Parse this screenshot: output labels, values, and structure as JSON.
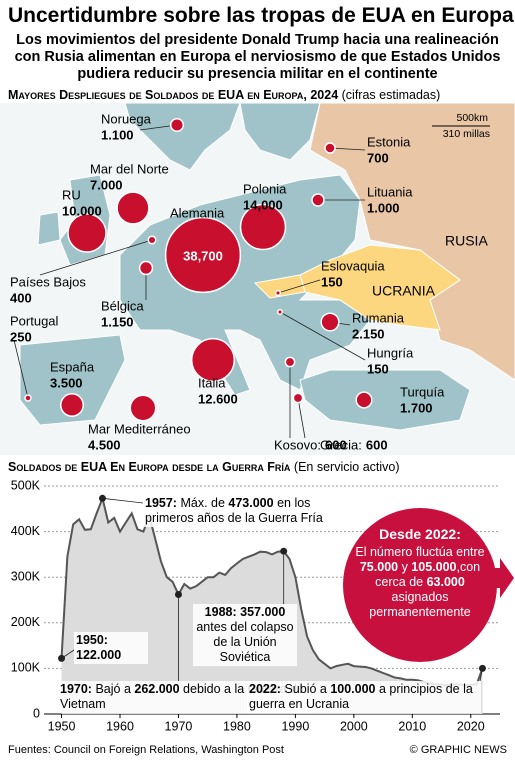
{
  "header": {
    "title": "Uncertidumbre sobre las tropas de EUA en Europa",
    "subtitle": "Los movimientos del presidente Donald Trump hacia una realineación con Rusia alimentan en Europa el nerviosismo de que Estados Unidos pudiera reducir su presencia militar en el continente"
  },
  "map": {
    "title": "Mayores Despliegues de Soldados de EUA en Europa, 2024",
    "subtitle": "(cifras estimadas)",
    "color": "#c8102e",
    "points": [
      {
        "name": "Noruega",
        "value": 1100,
        "value_label": "1.100"
      },
      {
        "name": "Mar del Norte",
        "value": 7000,
        "value_label": "7.000"
      },
      {
        "name": "RU",
        "value": 10000,
        "value_label": "10.000"
      },
      {
        "name": "Alemania",
        "value": 38700,
        "value_label": "38,700"
      },
      {
        "name": "Polonia",
        "value": 14000,
        "value_label": "14,000"
      },
      {
        "name": "Estonia",
        "value": 700,
        "value_label": "700"
      },
      {
        "name": "Lituania",
        "value": 1000,
        "value_label": "1.000"
      },
      {
        "name": "Países Bajos",
        "value": 400,
        "value_label": "400"
      },
      {
        "name": "Bélgica",
        "value": 1150,
        "value_label": "1.150"
      },
      {
        "name": "Eslovaquia",
        "value": 150,
        "value_label": "150"
      },
      {
        "name": "Rumania",
        "value": 2150,
        "value_label": "2.150"
      },
      {
        "name": "Hungría",
        "value": 150,
        "value_label": "150"
      },
      {
        "name": "Portugal",
        "value": 250,
        "value_label": "250"
      },
      {
        "name": "España",
        "value": 3500,
        "value_label": "3.500"
      },
      {
        "name": "Italia",
        "value": 12600,
        "value_label": "12.600"
      },
      {
        "name": "Mar Mediterráneo",
        "value": 4500,
        "value_label": "4.500"
      },
      {
        "name": "Kosovo:",
        "value": 600,
        "value_label": "600"
      },
      {
        "name": "Grecia:",
        "value": 600,
        "value_label": "600"
      },
      {
        "name": "Turquía",
        "value": 1700,
        "value_label": "1.700"
      }
    ],
    "labels": [
      "RUSIA",
      "UCRANIA"
    ],
    "scale": [
      "500km",
      "310 millas"
    ]
  },
  "chart_data": {
    "type": "area",
    "title": "Soldados de EUA En Europa desde la Guerra Fría",
    "subtitle": "(En servicio activo)",
    "x": [
      1950,
      1951,
      1952,
      1953,
      1954,
      1955,
      1956,
      1957,
      1958,
      1959,
      1960,
      1961,
      1962,
      1963,
      1964,
      1965,
      1966,
      1967,
      1968,
      1969,
      1970,
      1971,
      1972,
      1973,
      1974,
      1975,
      1976,
      1977,
      1978,
      1979,
      1980,
      1981,
      1982,
      1983,
      1984,
      1985,
      1986,
      1987,
      1988,
      1989,
      1990,
      1991,
      1992,
      1993,
      1994,
      1995,
      1996,
      1997,
      1998,
      1999,
      2000,
      2001,
      2002,
      2003,
      2004,
      2005,
      2006,
      2007,
      2008,
      2009,
      2010,
      2011,
      2012,
      2013,
      2014,
      2015,
      2016,
      2017,
      2018,
      2019,
      2020,
      2021,
      2022
    ],
    "values": [
      122000,
      346000,
      416000,
      427000,
      404000,
      405000,
      440000,
      473000,
      420000,
      430000,
      400000,
      420000,
      440000,
      405000,
      400000,
      435000,
      385000,
      335000,
      300000,
      290000,
      262000,
      285000,
      275000,
      280000,
      290000,
      300000,
      300000,
      310000,
      305000,
      320000,
      330000,
      340000,
      345000,
      350000,
      356000,
      355000,
      350000,
      356000,
      357000,
      340000,
      300000,
      230000,
      170000,
      140000,
      120000,
      110000,
      100000,
      105000,
      108000,
      110000,
      105000,
      104000,
      103000,
      100000,
      95000,
      90000,
      85000,
      80000,
      78000,
      75000,
      75000,
      74000,
      70000,
      67000,
      65000,
      65000,
      63000,
      65000,
      65000,
      63000,
      64000,
      65000,
      100000
    ],
    "color": "#dcdcdc",
    "line_color": "#555555",
    "xlim": [
      1947,
      2025
    ],
    "xticks": [
      1950,
      1960,
      1970,
      1980,
      1990,
      2000,
      2010,
      2020
    ],
    "ylim": [
      0,
      500000
    ],
    "yticks": [
      0,
      {
        "value": 100000,
        "label": "100K"
      },
      {
        "value": 200000,
        "label": "200K"
      },
      {
        "value": 300000,
        "label": "300K"
      },
      {
        "value": 400000,
        "label": "400K"
      },
      {
        "value": 500000,
        "label": "500K"
      }
    ],
    "grid": true,
    "annotations": [
      {
        "parts": [
          {
            "text": "1957:",
            "bold": true
          },
          {
            "text": " Máx. de ",
            "bold": false
          },
          {
            "text": "473.000",
            "bold": true
          },
          {
            "text": " en los primeros años de la Guerra Fría",
            "bold": false
          }
        ]
      },
      {
        "parts": [
          {
            "text": "1950:",
            "bold": true
          },
          {
            "text": " ",
            "bold": false
          },
          {
            "text": "122.000",
            "bold": true
          }
        ]
      },
      {
        "parts": [
          {
            "text": "1970:",
            "bold": true
          },
          {
            "text": " Bajó a ",
            "bold": false
          },
          {
            "text": "262.000",
            "bold": true
          },
          {
            "text": " debido a la Guerra de Vietnam",
            "bold": false
          }
        ]
      },
      {
        "parts": [
          {
            "text": "1988:",
            "bold": true
          },
          {
            "text": " ",
            "bold": false
          },
          {
            "text": "357.000",
            "bold": true
          },
          {
            "text": " antes del colapso de la Unión Soviética",
            "bold": false
          }
        ]
      },
      {
        "parts": [
          {
            "text": "2022:",
            "bold": true
          },
          {
            "text": " Subió a ",
            "bold": false
          },
          {
            "text": "100.000",
            "bold": true
          },
          {
            "text": " a principios de la guerra en Ucrania",
            "bold": false
          }
        ]
      }
    ],
    "callout": {
      "title": "Desde 2022:",
      "color": "#c8103f",
      "parts": [
        {
          "text": "El número fluctúa entre ",
          "bold": false
        },
        {
          "text": "75.000",
          "bold": true
        },
        {
          "text": " y ",
          "bold": false
        },
        {
          "text": "105.000",
          "bold": true
        },
        {
          "text": ",con cerca de ",
          "bold": false
        },
        {
          "text": "63.000",
          "bold": true
        },
        {
          "text": " asignados permanentemente",
          "bold": false
        }
      ]
    }
  },
  "footer": {
    "source": "Fuentes: Council on Foreign Relations, Washington Post",
    "credit": "© GRAPHIC NEWS"
  }
}
